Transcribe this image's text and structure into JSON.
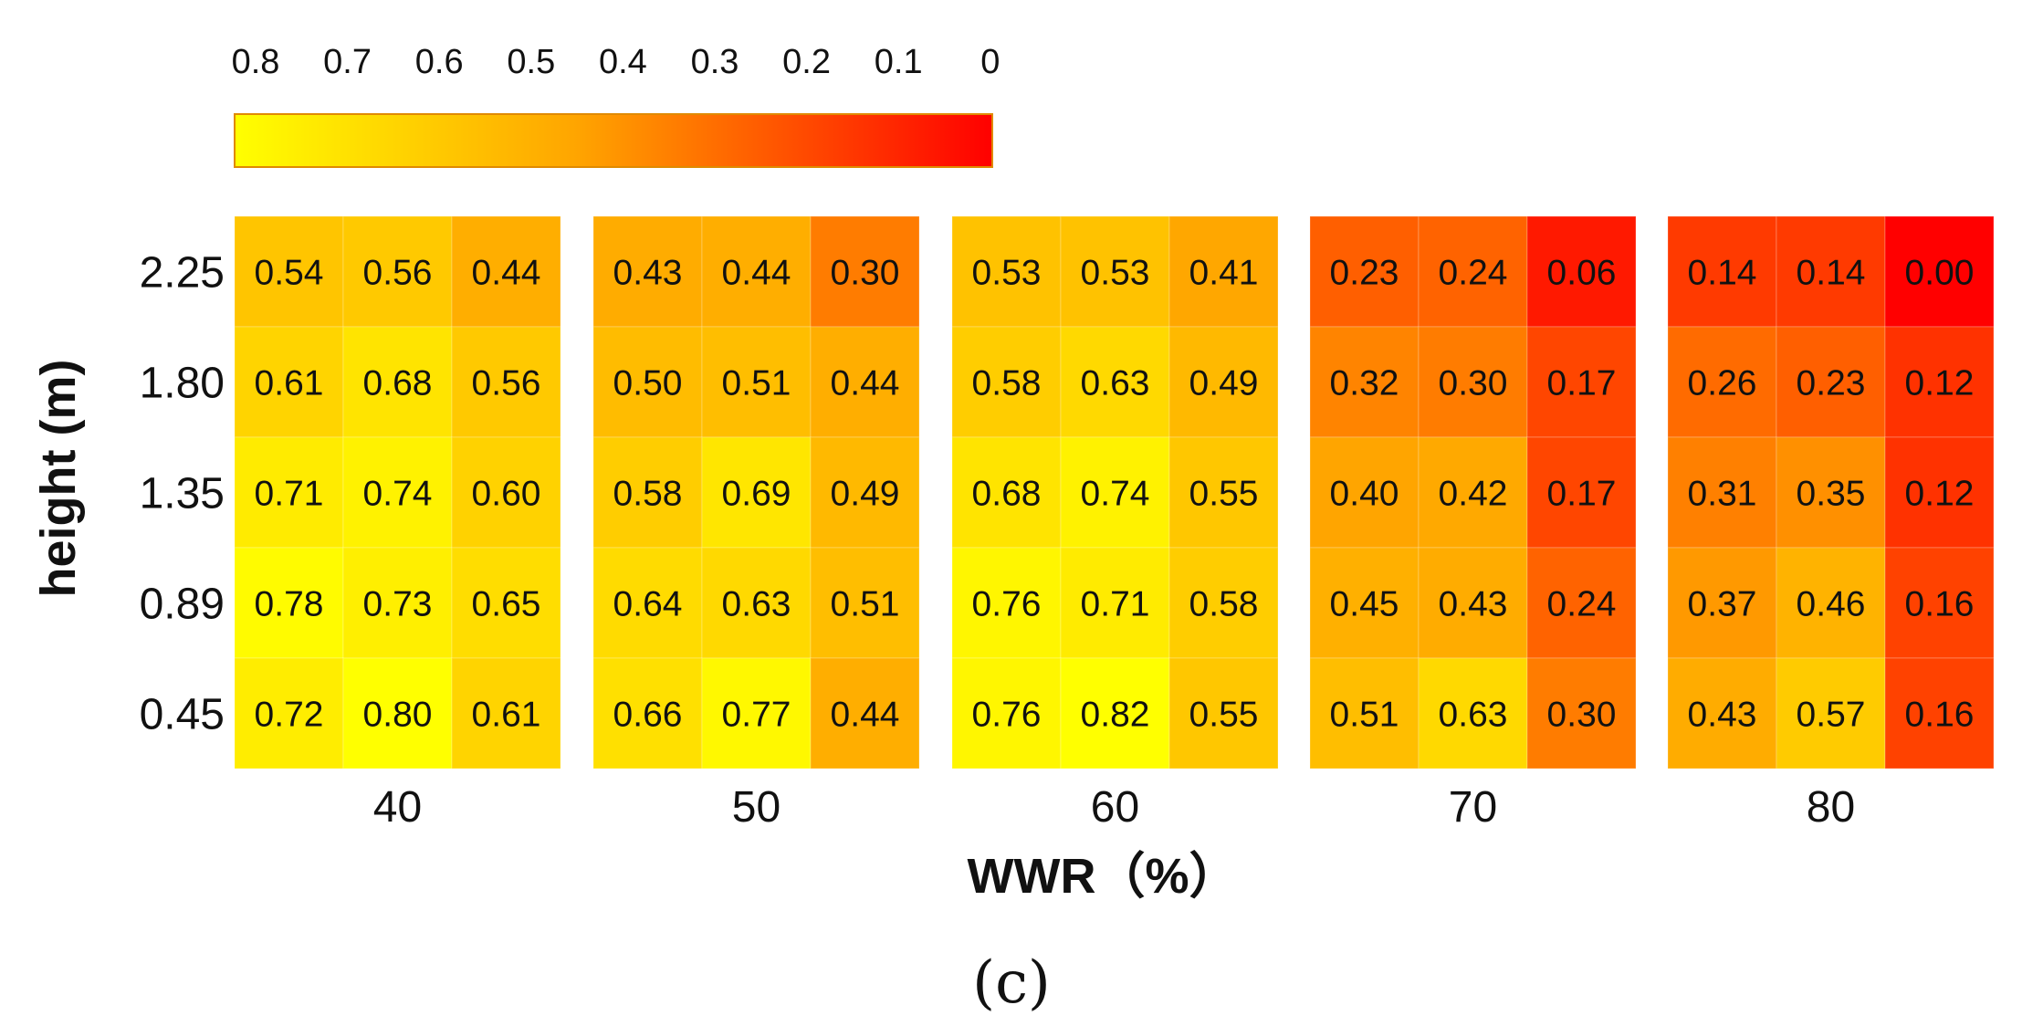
{
  "chart_data": {
    "type": "heatmap",
    "caption": "(c)",
    "xlabel": "WWR（%）",
    "ylabel": "height (m)",
    "rows": [
      "2.25",
      "1.80",
      "1.35",
      "0.89",
      "0.45"
    ],
    "groups": [
      {
        "label": "40",
        "values": [
          [
            0.54,
            0.56,
            0.44
          ],
          [
            0.61,
            0.68,
            0.56
          ],
          [
            0.71,
            0.74,
            0.6
          ],
          [
            0.78,
            0.73,
            0.65
          ],
          [
            0.72,
            0.8,
            0.61
          ]
        ]
      },
      {
        "label": "50",
        "values": [
          [
            0.43,
            0.44,
            0.3
          ],
          [
            0.5,
            0.51,
            0.44
          ],
          [
            0.58,
            0.69,
            0.49
          ],
          [
            0.64,
            0.63,
            0.51
          ],
          [
            0.66,
            0.77,
            0.44
          ]
        ]
      },
      {
        "label": "60",
        "values": [
          [
            0.53,
            0.53,
            0.41
          ],
          [
            0.58,
            0.63,
            0.49
          ],
          [
            0.68,
            0.74,
            0.55
          ],
          [
            0.76,
            0.71,
            0.58
          ],
          [
            0.76,
            0.82,
            0.55
          ]
        ]
      },
      {
        "label": "70",
        "values": [
          [
            0.23,
            0.24,
            0.06
          ],
          [
            0.32,
            0.3,
            0.17
          ],
          [
            0.4,
            0.42,
            0.17
          ],
          [
            0.45,
            0.43,
            0.24
          ],
          [
            0.51,
            0.63,
            0.3
          ]
        ]
      },
      {
        "label": "80",
        "values": [
          [
            0.14,
            0.14,
            0.0
          ],
          [
            0.26,
            0.23,
            0.12
          ],
          [
            0.31,
            0.35,
            0.12
          ],
          [
            0.37,
            0.46,
            0.16
          ],
          [
            0.43,
            0.57,
            0.16
          ]
        ]
      }
    ],
    "colorbar": {
      "ticks": [
        "0.8",
        "0.7",
        "0.6",
        "0.5",
        "0.4",
        "0.3",
        "0.2",
        "0.1",
        "0"
      ],
      "range": [
        0.8,
        0
      ],
      "colors": [
        "#ffff00",
        "#ffa500",
        "#ff0000"
      ]
    }
  }
}
